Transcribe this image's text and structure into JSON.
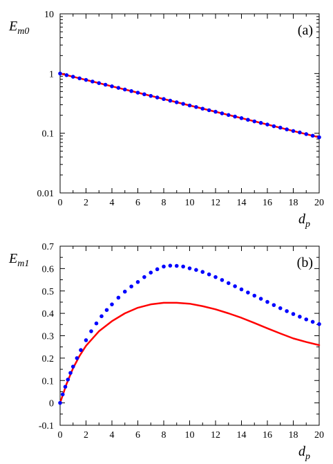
{
  "chart_data": [
    {
      "type": "line",
      "panel_label": "(a)",
      "xlabel": "d",
      "xlabel_sub": "p",
      "ylabel": "E",
      "ylabel_sub": "m0",
      "xlim": [
        0,
        20
      ],
      "ylim": [
        0.01,
        10
      ],
      "yscale": "log",
      "x_ticks": [
        0,
        2,
        4,
        6,
        8,
        10,
        12,
        14,
        16,
        18,
        20
      ],
      "x_tick_labels": [
        "0",
        "2",
        "4",
        "6",
        "8",
        "10",
        "12",
        "14",
        "16",
        "18",
        "20"
      ],
      "y_ticks": [
        0.01,
        0.1,
        1,
        10
      ],
      "y_tick_labels": [
        "0.01",
        "0.1",
        "1",
        "10"
      ],
      "grid": false,
      "series": [
        {
          "style": "line",
          "color": "#ff0000",
          "x": [
            0,
            2,
            4,
            6,
            8,
            10,
            12,
            14,
            16,
            18,
            20
          ],
          "y": [
            1.0,
            0.782,
            0.611,
            0.478,
            0.374,
            0.292,
            0.229,
            0.179,
            0.14,
            0.109,
            0.0855
          ]
        },
        {
          "style": "dots",
          "color": "#0000ff",
          "x": [
            0,
            0.5,
            1,
            1.5,
            2,
            2.5,
            3,
            3.5,
            4,
            4.5,
            5,
            5.5,
            6,
            6.5,
            7,
            7.5,
            8,
            8.5,
            9,
            9.5,
            10,
            10.5,
            11,
            11.5,
            12,
            12.5,
            13,
            13.5,
            14,
            14.5,
            15,
            15.5,
            16,
            16.5,
            17,
            17.5,
            18,
            18.5,
            19,
            19.5,
            20
          ],
          "y": [
            1.0,
            0.94,
            0.884,
            0.831,
            0.782,
            0.735,
            0.691,
            0.65,
            0.611,
            0.575,
            0.54,
            0.508,
            0.478,
            0.449,
            0.422,
            0.397,
            0.374,
            0.351,
            0.33,
            0.311,
            0.292,
            0.275,
            0.258,
            0.243,
            0.229,
            0.215,
            0.202,
            0.19,
            0.179,
            0.168,
            0.158,
            0.149,
            0.14,
            0.131,
            0.124,
            0.116,
            0.109,
            0.103,
            0.0967,
            0.0909,
            0.0855
          ]
        }
      ]
    },
    {
      "type": "line",
      "panel_label": "(b)",
      "xlabel": "d",
      "xlabel_sub": "p",
      "ylabel": "E",
      "ylabel_sub": "m1",
      "xlim": [
        0,
        20
      ],
      "ylim": [
        -0.1,
        0.7
      ],
      "yscale": "linear",
      "x_ticks": [
        0,
        2,
        4,
        6,
        8,
        10,
        12,
        14,
        16,
        18,
        20
      ],
      "x_tick_labels": [
        "0",
        "2",
        "4",
        "6",
        "8",
        "10",
        "12",
        "14",
        "16",
        "18",
        "20"
      ],
      "y_ticks": [
        -0.1,
        0,
        0.1,
        0.2,
        0.3,
        0.4,
        0.5,
        0.6,
        0.7
      ],
      "y_tick_labels": [
        "-0.1",
        "0",
        "0.1",
        "0.2",
        "0.3",
        "0.4",
        "0.5",
        "0.6",
        "0.7"
      ],
      "grid": false,
      "series": [
        {
          "style": "line",
          "color": "#ff0000",
          "x": [
            0,
            0.5,
            1,
            1.5,
            2,
            3,
            4,
            5,
            6,
            7,
            8,
            9,
            10,
            11,
            12,
            13,
            14,
            15,
            16,
            17,
            18,
            19,
            20
          ],
          "y": [
            0.0,
            0.085,
            0.155,
            0.21,
            0.255,
            0.32,
            0.365,
            0.4,
            0.425,
            0.44,
            0.447,
            0.447,
            0.443,
            0.432,
            0.418,
            0.4,
            0.38,
            0.357,
            0.333,
            0.31,
            0.288,
            0.272,
            0.258
          ]
        },
        {
          "style": "dots",
          "color": "#0000ff",
          "x": [
            0,
            0.2,
            0.4,
            0.6,
            0.8,
            1.0,
            1.3,
            1.6,
            2.0,
            2.4,
            2.8,
            3.2,
            3.6,
            4.0,
            4.5,
            5.0,
            5.5,
            6.0,
            6.5,
            7.0,
            7.5,
            8.0,
            8.5,
            9.0,
            9.5,
            10.0,
            10.5,
            11.0,
            11.5,
            12.0,
            12.5,
            13.0,
            13.5,
            14.0,
            14.5,
            15.0,
            15.5,
            16.0,
            16.5,
            17.0,
            17.5,
            18.0,
            18.5,
            19.0,
            19.5,
            20.0
          ],
          "y": [
            0.0,
            0.038,
            0.072,
            0.104,
            0.134,
            0.162,
            0.2,
            0.236,
            0.28,
            0.32,
            0.355,
            0.387,
            0.415,
            0.44,
            0.47,
            0.497,
            0.52,
            0.54,
            0.562,
            0.582,
            0.597,
            0.609,
            0.613,
            0.612,
            0.609,
            0.601,
            0.594,
            0.585,
            0.574,
            0.562,
            0.549,
            0.535,
            0.521,
            0.507,
            0.493,
            0.479,
            0.465,
            0.451,
            0.437,
            0.423,
            0.41,
            0.397,
            0.385,
            0.373,
            0.362,
            0.352
          ]
        }
      ]
    }
  ]
}
